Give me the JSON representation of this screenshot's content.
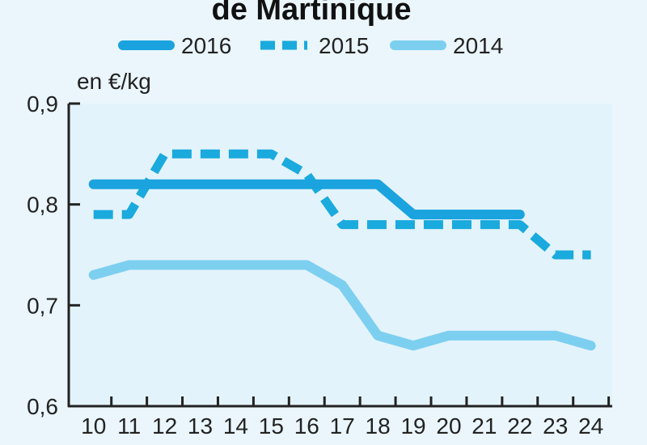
{
  "chart_data": {
    "type": "line",
    "title": "de Martinique",
    "ylabel": "en €/kg",
    "xlabel": "",
    "x": [
      10,
      11,
      12,
      13,
      14,
      15,
      16,
      17,
      18,
      19,
      20,
      21,
      22,
      23,
      24
    ],
    "x_tick_labels": [
      "10",
      "11",
      "12",
      "13",
      "14",
      "15",
      "16",
      "17",
      "18",
      "19",
      "20",
      "21",
      "22",
      "23",
      "24"
    ],
    "xlim": [
      9.3,
      24.6
    ],
    "ylim": [
      0.6,
      0.9
    ],
    "y_ticks": [
      0.6,
      0.7,
      0.8,
      0.9
    ],
    "y_tick_labels": [
      "0,6",
      "0,7",
      "0,8",
      "0,9"
    ],
    "grid": false,
    "legend_position": "top",
    "colors": {
      "background": "#eaf6fc",
      "plot_background": "#e3f3fb",
      "axis": "#222222"
    },
    "series": [
      {
        "name": "2016",
        "style": "solid",
        "color": "#1aa3de",
        "x": [
          10,
          18,
          19,
          22
        ],
        "values": [
          0.82,
          0.82,
          0.79,
          0.79
        ]
      },
      {
        "name": "2015",
        "style": "dashed",
        "color": "#1aaadd",
        "x": [
          10,
          11,
          12,
          13,
          14,
          15,
          16,
          17,
          18,
          19,
          20,
          21,
          22,
          23,
          24
        ],
        "values": [
          0.79,
          0.79,
          0.85,
          0.85,
          0.85,
          0.85,
          0.83,
          0.78,
          0.78,
          0.78,
          0.78,
          0.78,
          0.78,
          0.75,
          0.75
        ]
      },
      {
        "name": "2014",
        "style": "solid",
        "color": "#7dcff0",
        "x": [
          10,
          11,
          12,
          13,
          14,
          15,
          16,
          17,
          18,
          19,
          20,
          21,
          22,
          23,
          24
        ],
        "values": [
          0.73,
          0.74,
          0.74,
          0.74,
          0.74,
          0.74,
          0.74,
          0.72,
          0.67,
          0.66,
          0.67,
          0.67,
          0.67,
          0.67,
          0.66
        ]
      }
    ]
  }
}
